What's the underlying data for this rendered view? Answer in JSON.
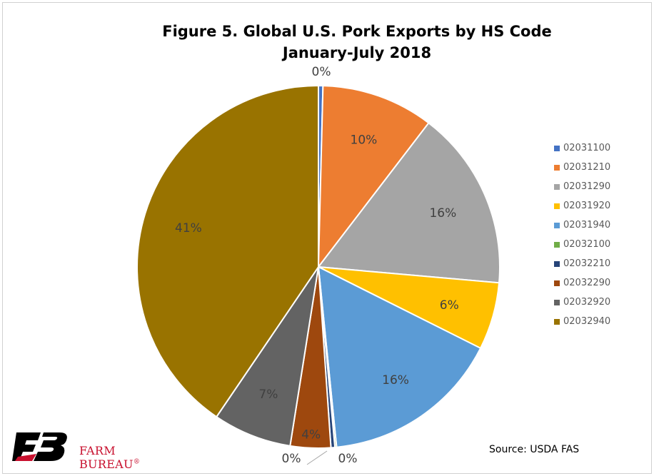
{
  "chart_data": {
    "type": "pie",
    "title": "Figure 5. Global U.S. Pork Exports by HS Code",
    "subtitle": "January-July 2018",
    "slices": [
      {
        "name": "02031100",
        "value": 0.4,
        "label": "0%",
        "color": "#4472c4"
      },
      {
        "name": "02031210",
        "value": 10,
        "label": "10%",
        "color": "#ed7d31"
      },
      {
        "name": "02031290",
        "value": 16,
        "label": "16%",
        "color": "#a5a5a5"
      },
      {
        "name": "02031920",
        "value": 6,
        "label": "6%",
        "color": "#ffc000"
      },
      {
        "name": "02031940",
        "value": 16,
        "label": "16%",
        "color": "#5b9bd5"
      },
      {
        "name": "02032100",
        "value": 0.15,
        "label": "0%",
        "color": "#70ad47"
      },
      {
        "name": "02032210",
        "value": 0.35,
        "label": "0%",
        "color": "#264478"
      },
      {
        "name": "02032290",
        "value": 3.6,
        "label": "4%",
        "color": "#9e480e"
      },
      {
        "name": "02032920",
        "value": 7,
        "label": "7%",
        "color": "#636363"
      },
      {
        "name": "02032940",
        "value": 40.5,
        "label": "41%",
        "color": "#997300"
      }
    ],
    "legend_position": "right"
  },
  "source": "Source: USDA FAS",
  "logo": {
    "text": "FARM BUREAU",
    "mark": "®",
    "color": "#c8102e"
  }
}
